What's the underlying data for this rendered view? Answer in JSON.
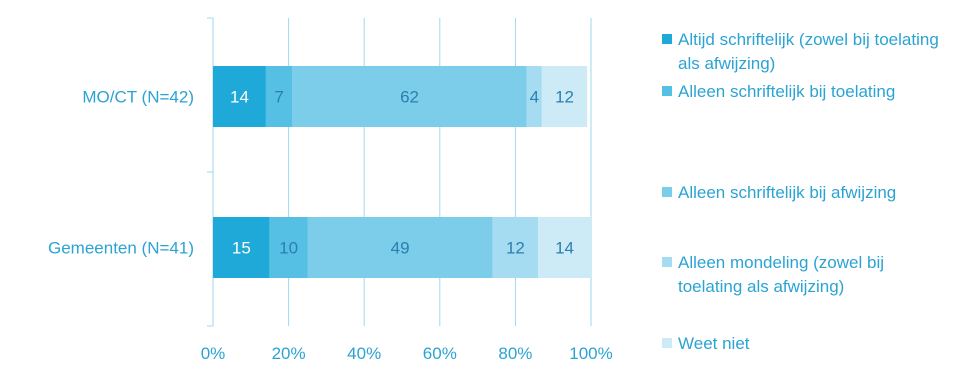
{
  "chart_data": {
    "type": "bar",
    "orientation": "horizontal",
    "stacked": true,
    "categories": [
      "MO/CT (N=42)",
      "Gemeenten (N=41)"
    ],
    "series": [
      {
        "name": "Altijd schriftelijk (zowel bij toelating als afwijzing)",
        "values": [
          14,
          15
        ],
        "color": "#1ea9d8"
      },
      {
        "name": "Alleen schriftelijk bij toelating",
        "values": [
          7,
          10
        ],
        "color": "#56c0e4"
      },
      {
        "name": "Alleen schriftelijk bij afwijzing",
        "values": [
          62,
          49
        ],
        "color": "#7ccdea"
      },
      {
        "name": "Alleen mondeling (zowel bij toelating als afwijzing)",
        "values": [
          4,
          12
        ],
        "color": "#a6dcf1"
      },
      {
        "name": "Weet niet",
        "values": [
          12,
          14
        ],
        "color": "#cdebf7"
      }
    ],
    "xlim": [
      0,
      100
    ],
    "x_ticks": [
      "0%",
      "20%",
      "40%",
      "60%",
      "80%",
      "100%"
    ],
    "grid": "vertical",
    "legend_position": "right",
    "label_color": "#2ba3d3",
    "axis_color": "#9fd8ee"
  }
}
